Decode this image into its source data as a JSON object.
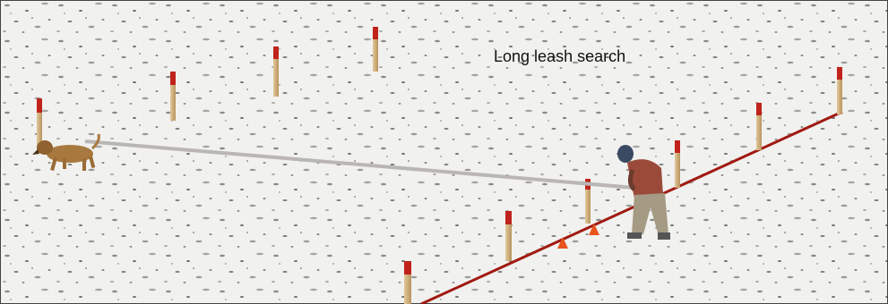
{
  "caption": "Long leash search"
}
